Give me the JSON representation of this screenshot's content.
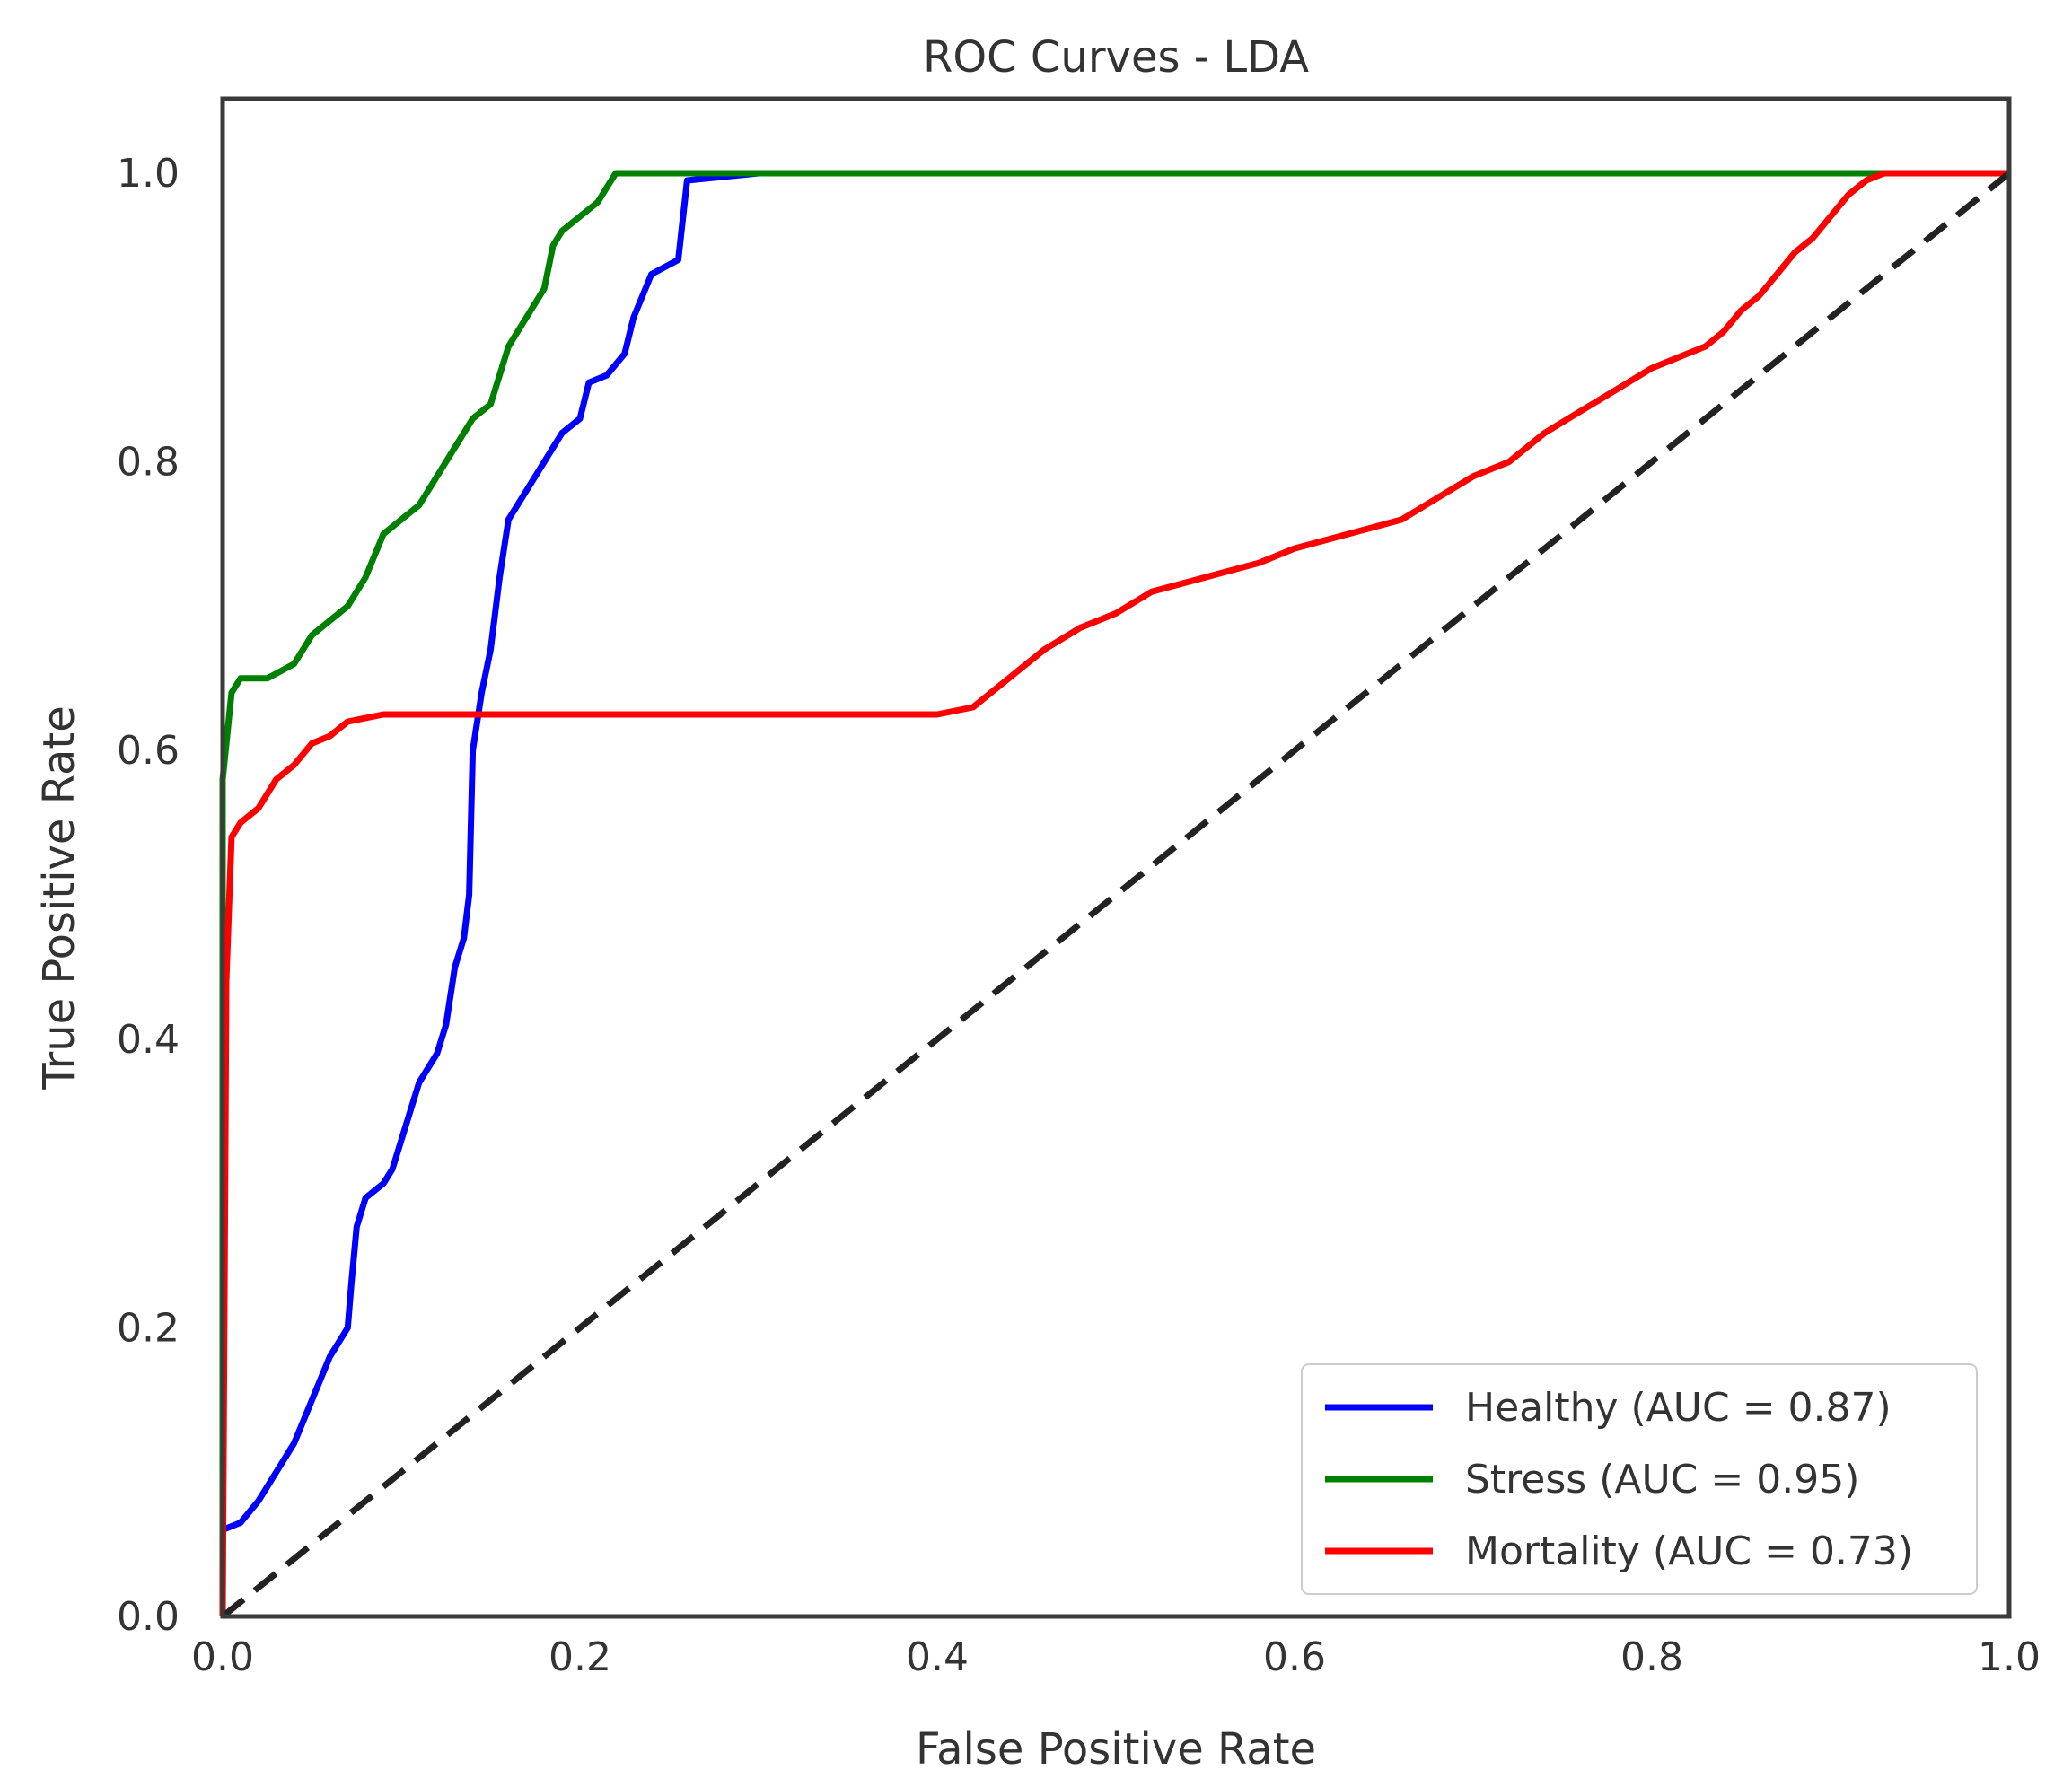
{
  "chart_data": {
    "type": "line",
    "title": "ROC Curves - LDA",
    "xlabel": "False Positive Rate",
    "ylabel": "True Positive Rate",
    "xlim": [
      0.0,
      1.0
    ],
    "ylim": [
      0.0,
      1.05
    ],
    "grid": false,
    "legend_position": "lower-right",
    "x_ticks": [
      "0.0",
      "0.2",
      "0.4",
      "0.6",
      "0.8",
      "1.0"
    ],
    "y_ticks": [
      "0.0",
      "0.2",
      "0.4",
      "0.6",
      "0.8",
      "1.0"
    ],
    "series": [
      {
        "name": "Healthy (AUC = 0.87)",
        "color": "#0000ff",
        "points": [
          [
            0.0,
            0.0
          ],
          [
            0.0,
            0.06
          ],
          [
            0.01,
            0.065
          ],
          [
            0.02,
            0.08
          ],
          [
            0.03,
            0.1
          ],
          [
            0.04,
            0.12
          ],
          [
            0.045,
            0.135
          ],
          [
            0.05,
            0.15
          ],
          [
            0.06,
            0.18
          ],
          [
            0.07,
            0.2
          ],
          [
            0.072,
            0.23
          ],
          [
            0.075,
            0.27
          ],
          [
            0.08,
            0.29
          ],
          [
            0.09,
            0.3
          ],
          [
            0.095,
            0.31
          ],
          [
            0.1,
            0.33
          ],
          [
            0.11,
            0.37
          ],
          [
            0.12,
            0.39
          ],
          [
            0.125,
            0.41
          ],
          [
            0.13,
            0.45
          ],
          [
            0.135,
            0.47
          ],
          [
            0.138,
            0.5
          ],
          [
            0.14,
            0.6
          ],
          [
            0.145,
            0.64
          ],
          [
            0.15,
            0.67
          ],
          [
            0.155,
            0.72
          ],
          [
            0.16,
            0.76
          ],
          [
            0.17,
            0.78
          ],
          [
            0.18,
            0.8
          ],
          [
            0.19,
            0.82
          ],
          [
            0.2,
            0.83
          ],
          [
            0.205,
            0.855
          ],
          [
            0.215,
            0.86
          ],
          [
            0.225,
            0.875
          ],
          [
            0.23,
            0.9
          ],
          [
            0.24,
            0.93
          ],
          [
            0.255,
            0.94
          ],
          [
            0.26,
            0.995
          ],
          [
            0.3,
            1.0
          ],
          [
            1.0,
            1.0
          ]
        ]
      },
      {
        "name": "Stress (AUC = 0.95)",
        "color": "#008000",
        "points": [
          [
            0.0,
            0.0
          ],
          [
            0.0,
            0.58
          ],
          [
            0.005,
            0.64
          ],
          [
            0.01,
            0.65
          ],
          [
            0.025,
            0.65
          ],
          [
            0.04,
            0.66
          ],
          [
            0.05,
            0.68
          ],
          [
            0.06,
            0.69
          ],
          [
            0.07,
            0.7
          ],
          [
            0.08,
            0.72
          ],
          [
            0.09,
            0.75
          ],
          [
            0.1,
            0.76
          ],
          [
            0.11,
            0.77
          ],
          [
            0.12,
            0.79
          ],
          [
            0.13,
            0.81
          ],
          [
            0.14,
            0.83
          ],
          [
            0.15,
            0.84
          ],
          [
            0.16,
            0.88
          ],
          [
            0.17,
            0.9
          ],
          [
            0.18,
            0.92
          ],
          [
            0.185,
            0.95
          ],
          [
            0.19,
            0.96
          ],
          [
            0.2,
            0.97
          ],
          [
            0.21,
            0.98
          ],
          [
            0.215,
            0.99
          ],
          [
            0.22,
            1.0
          ],
          [
            1.0,
            1.0
          ]
        ]
      },
      {
        "name": "Mortality (AUC = 0.73)",
        "color": "#ff0000",
        "points": [
          [
            0.0,
            0.0
          ],
          [
            0.002,
            0.44
          ],
          [
            0.005,
            0.54
          ],
          [
            0.01,
            0.55
          ],
          [
            0.02,
            0.56
          ],
          [
            0.03,
            0.58
          ],
          [
            0.04,
            0.59
          ],
          [
            0.05,
            0.605
          ],
          [
            0.06,
            0.61
          ],
          [
            0.07,
            0.62
          ],
          [
            0.09,
            0.625
          ],
          [
            0.2,
            0.625
          ],
          [
            0.3,
            0.625
          ],
          [
            0.4,
            0.625
          ],
          [
            0.42,
            0.63
          ],
          [
            0.44,
            0.65
          ],
          [
            0.46,
            0.67
          ],
          [
            0.48,
            0.685
          ],
          [
            0.5,
            0.695
          ],
          [
            0.52,
            0.71
          ],
          [
            0.55,
            0.72
          ],
          [
            0.58,
            0.73
          ],
          [
            0.6,
            0.74
          ],
          [
            0.63,
            0.75
          ],
          [
            0.66,
            0.76
          ],
          [
            0.68,
            0.775
          ],
          [
            0.7,
            0.79
          ],
          [
            0.72,
            0.8
          ],
          [
            0.74,
            0.82
          ],
          [
            0.76,
            0.835
          ],
          [
            0.78,
            0.85
          ],
          [
            0.8,
            0.865
          ],
          [
            0.82,
            0.875
          ],
          [
            0.83,
            0.88
          ],
          [
            0.84,
            0.89
          ],
          [
            0.85,
            0.905
          ],
          [
            0.86,
            0.915
          ],
          [
            0.87,
            0.93
          ],
          [
            0.88,
            0.945
          ],
          [
            0.89,
            0.955
          ],
          [
            0.9,
            0.97
          ],
          [
            0.91,
            0.985
          ],
          [
            0.92,
            0.995
          ],
          [
            0.93,
            1.0
          ],
          [
            1.0,
            1.0
          ]
        ]
      },
      {
        "name": "",
        "color": "#222222",
        "dashed": true,
        "points": [
          [
            0.0,
            0.0
          ],
          [
            1.0,
            1.0
          ]
        ]
      }
    ]
  }
}
